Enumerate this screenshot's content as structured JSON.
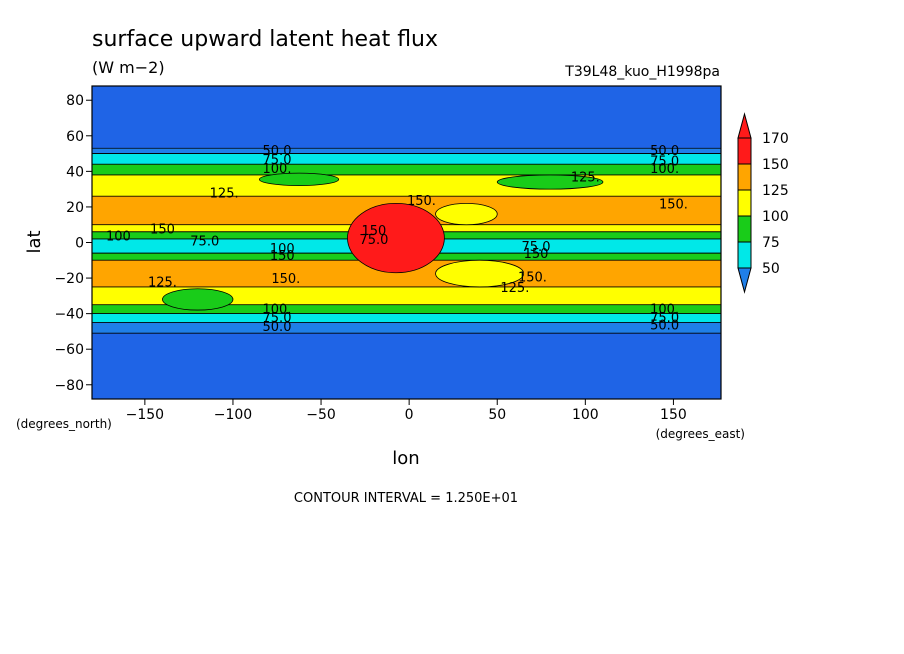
{
  "chart_data": {
    "type": "heatmap",
    "title": "surface upward latent heat flux",
    "units": "(W m−2)",
    "run_label": "T39L48_kuo_H1998pa",
    "xlabel": "lon",
    "ylabel": "lat",
    "x_unit_label": "(degrees_east)",
    "y_unit_label": "(degrees_north)",
    "xlim": [
      -180,
      177
    ],
    "ylim": [
      -88,
      88
    ],
    "x_ticks": [
      -150,
      -100,
      -50,
      0,
      50,
      100,
      150
    ],
    "y_ticks": [
      -80,
      -60,
      -40,
      -20,
      0,
      20,
      40,
      60,
      80
    ],
    "footer": "CONTOUR INTERVAL = 1.250E+01",
    "colorbar": {
      "levels": [
        50,
        75,
        100,
        125,
        150,
        170
      ],
      "colors": [
        "#1f7fe8",
        "#00e8e8",
        "#19cc19",
        "#ffff00",
        "#ffa500",
        "#ff1a1a"
      ],
      "below_color": "#1f7fe8",
      "above_color": "#ff1a1a"
    },
    "base_color": "#1f64e6",
    "bands": [
      {
        "lat": [
          50,
          53
        ],
        "value": 55
      },
      {
        "lat": [
          44,
          50
        ],
        "value": 80
      },
      {
        "lat": [
          38,
          44
        ],
        "value": 105
      },
      {
        "lat": [
          26,
          38
        ],
        "value": 130
      },
      {
        "lat": [
          10,
          26
        ],
        "value": 150
      },
      {
        "lat": [
          6,
          10
        ],
        "value": 130
      },
      {
        "lat": [
          2,
          6
        ],
        "value": 105
      },
      {
        "lat": [
          -6,
          2
        ],
        "value": 80
      },
      {
        "lat": [
          -10,
          -6
        ],
        "value": 105
      },
      {
        "lat": [
          -25,
          -10
        ],
        "value": 150
      },
      {
        "lat": [
          -35,
          -25
        ],
        "value": 130
      },
      {
        "lat": [
          -40,
          -35
        ],
        "value": 105
      },
      {
        "lat": [
          -45,
          -40
        ],
        "value": 80
      },
      {
        "lat": [
          -51,
          -45
        ],
        "value": 55
      }
    ],
    "patches": [
      {
        "lon": [
          -140,
          -100
        ],
        "lat": [
          -38,
          -26
        ],
        "value": 105
      },
      {
        "lon": [
          -85,
          -40
        ],
        "lat": [
          32,
          39
        ],
        "value": 105
      },
      {
        "lon": [
          50,
          110
        ],
        "lat": [
          30,
          38
        ],
        "value": 105
      },
      {
        "lon": [
          15,
          65
        ],
        "lat": [
          -25,
          -10
        ],
        "value": 130
      },
      {
        "lon": [
          15,
          50
        ],
        "lat": [
          10,
          22
        ],
        "value": 130
      },
      {
        "lon": [
          -35,
          20
        ],
        "lat": [
          -17,
          22
        ],
        "value": 170
      }
    ],
    "contour_labels": [
      {
        "lon": -75,
        "lat": 52,
        "text": "50.0"
      },
      {
        "lon": -75,
        "lat": 47,
        "text": "75.0"
      },
      {
        "lon": -75,
        "lat": 42,
        "text": "100."
      },
      {
        "lon": -105,
        "lat": 28,
        "text": "125."
      },
      {
        "lon": 7,
        "lat": 24,
        "text": "150."
      },
      {
        "lon": 145,
        "lat": 52,
        "text": "50.0"
      },
      {
        "lon": 145,
        "lat": 46,
        "text": "75.0"
      },
      {
        "lon": 145,
        "lat": 42,
        "text": "100."
      },
      {
        "lon": 100,
        "lat": 37,
        "text": "125."
      },
      {
        "lon": 150,
        "lat": 22,
        "text": "150."
      },
      {
        "lon": -165,
        "lat": 4,
        "text": "100"
      },
      {
        "lon": -140,
        "lat": 8,
        "text": "150"
      },
      {
        "lon": -116,
        "lat": 1,
        "text": "75.0"
      },
      {
        "lon": -72,
        "lat": -3,
        "text": "100"
      },
      {
        "lon": -72,
        "lat": -7,
        "text": "150"
      },
      {
        "lon": -70,
        "lat": -20,
        "text": "150."
      },
      {
        "lon": -140,
        "lat": -22,
        "text": "125."
      },
      {
        "lon": -20,
        "lat": 7,
        "text": "150"
      },
      {
        "lon": -20,
        "lat": 2,
        "text": "75.0"
      },
      {
        "lon": 72,
        "lat": -2,
        "text": "75.0"
      },
      {
        "lon": 72,
        "lat": -6,
        "text": "150"
      },
      {
        "lon": 70,
        "lat": -19,
        "text": "150."
      },
      {
        "lon": 60,
        "lat": -25,
        "text": "125."
      },
      {
        "lon": -75,
        "lat": -37,
        "text": "100."
      },
      {
        "lon": -75,
        "lat": -42,
        "text": "75.0"
      },
      {
        "lon": -75,
        "lat": -47,
        "text": "50.0"
      },
      {
        "lon": 145,
        "lat": -37,
        "text": "100."
      },
      {
        "lon": 145,
        "lat": -42,
        "text": "75.0"
      },
      {
        "lon": 145,
        "lat": -46,
        "text": "50.0"
      }
    ]
  }
}
